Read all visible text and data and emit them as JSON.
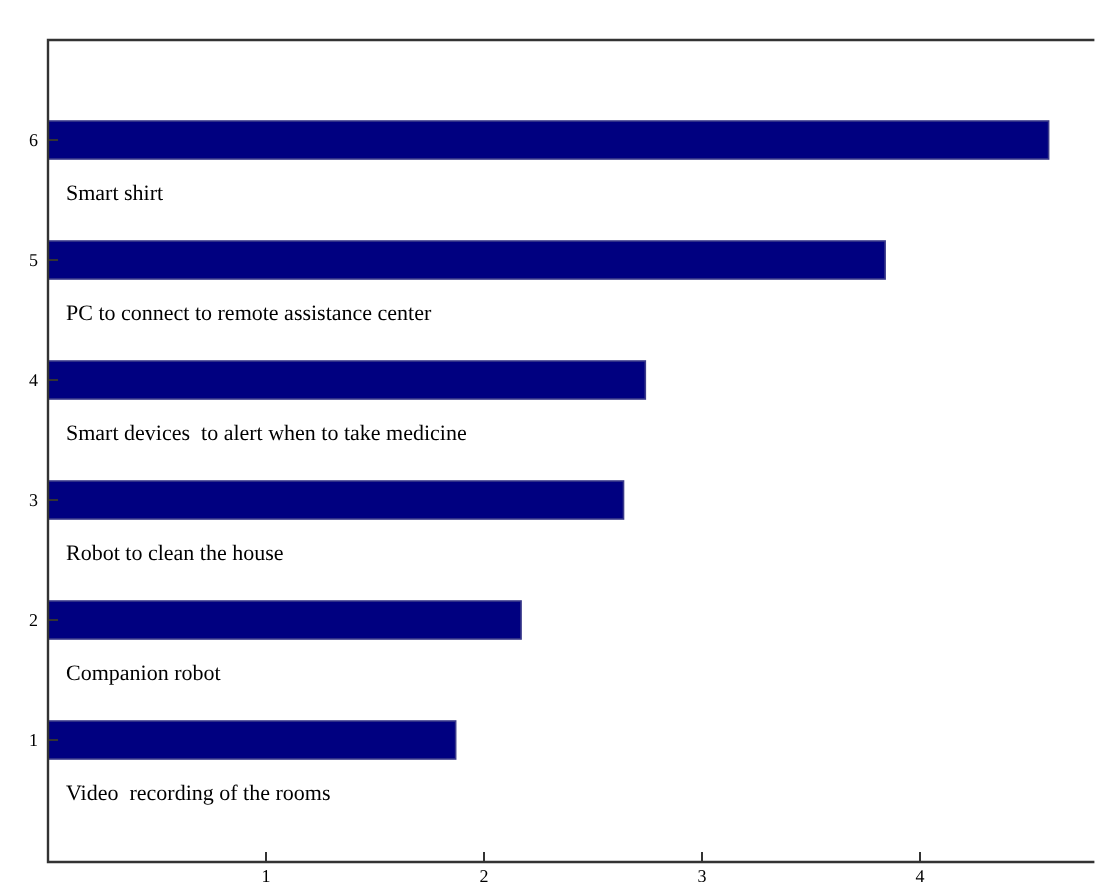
{
  "chart_data": {
    "type": "bar",
    "orientation": "horizontal",
    "categories": [
      "6",
      "5",
      "4",
      "3",
      "2",
      "1"
    ],
    "values": [
      4.59,
      3.84,
      2.74,
      2.64,
      2.17,
      1.87
    ],
    "color": "#000080",
    "xlim": [
      0,
      4.8
    ],
    "xticks": [
      1,
      2,
      3,
      4
    ],
    "grid": false,
    "annotations": [
      "Smart shirt",
      "PC to connect to remote assistance center",
      "Smart devices  to alert when to take medicine",
      "Robot to clean the house",
      "Companion robot",
      "Video  recording of the rooms"
    ]
  }
}
